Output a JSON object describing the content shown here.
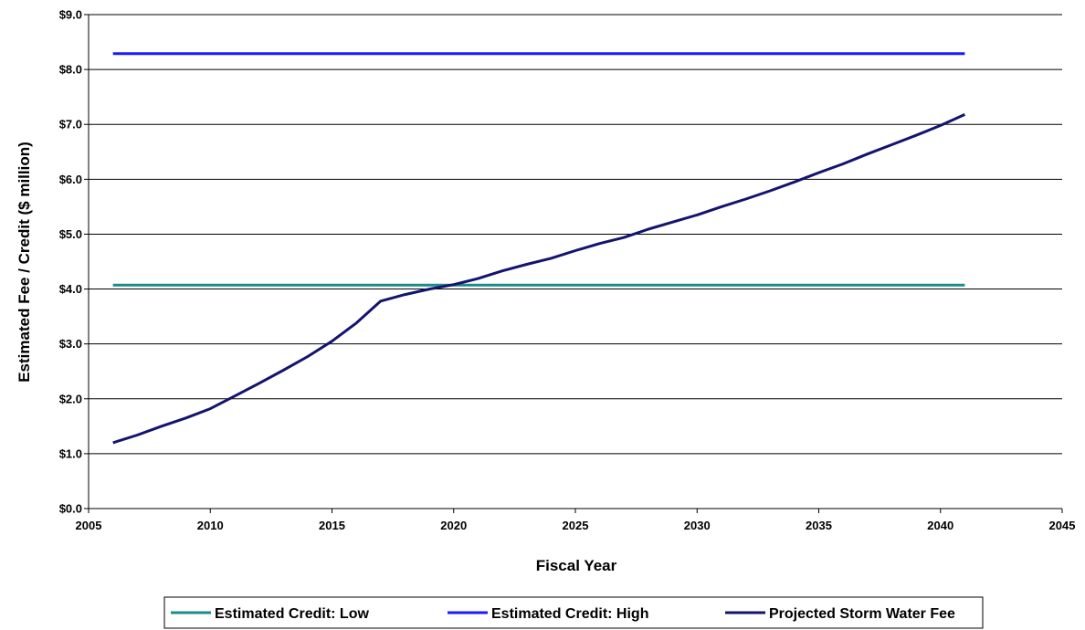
{
  "chart_data": {
    "type": "line",
    "title": "",
    "xlabel": "Fiscal Year",
    "ylabel": "Estimated Fee / Credit ($ million)",
    "xlim": [
      2005,
      2045
    ],
    "ylim": [
      0,
      9
    ],
    "x_ticks": [
      "2005",
      "2010",
      "2015",
      "2020",
      "2025",
      "2030",
      "2035",
      "2040",
      "2045"
    ],
    "y_ticks": [
      "$0.0",
      "$1.0",
      "$2.0",
      "$3.0",
      "$4.0",
      "$5.0",
      "$6.0",
      "$7.0",
      "$8.0",
      "$9.0"
    ],
    "grid": "horizontal",
    "legend_position": "bottom",
    "series": [
      {
        "name": "Estimated Credit: Low",
        "color": "#1a8c8c",
        "x": [
          2006,
          2041
        ],
        "y": [
          4.07,
          4.07
        ]
      },
      {
        "name": "Estimated Credit: High",
        "color": "#1a1aff",
        "x": [
          2006,
          2041
        ],
        "y": [
          8.29,
          8.29
        ]
      },
      {
        "name": "Projected Storm Water Fee",
        "color": "#14146e",
        "x": [
          2006,
          2007,
          2008,
          2009,
          2010,
          2011,
          2012,
          2013,
          2014,
          2015,
          2016,
          2017,
          2018,
          2019,
          2020,
          2021,
          2022,
          2023,
          2024,
          2025,
          2026,
          2027,
          2028,
          2029,
          2030,
          2031,
          2032,
          2033,
          2034,
          2035,
          2036,
          2037,
          2038,
          2039,
          2040,
          2041
        ],
        "y": [
          1.2,
          1.34,
          1.5,
          1.65,
          1.82,
          2.05,
          2.28,
          2.52,
          2.77,
          3.05,
          3.38,
          3.78,
          3.9,
          4.0,
          4.08,
          4.19,
          4.33,
          4.45,
          4.56,
          4.7,
          4.83,
          4.94,
          5.09,
          5.22,
          5.35,
          5.5,
          5.64,
          5.79,
          5.95,
          6.12,
          6.28,
          6.46,
          6.63,
          6.8,
          6.98,
          7.18
        ]
      }
    ]
  }
}
